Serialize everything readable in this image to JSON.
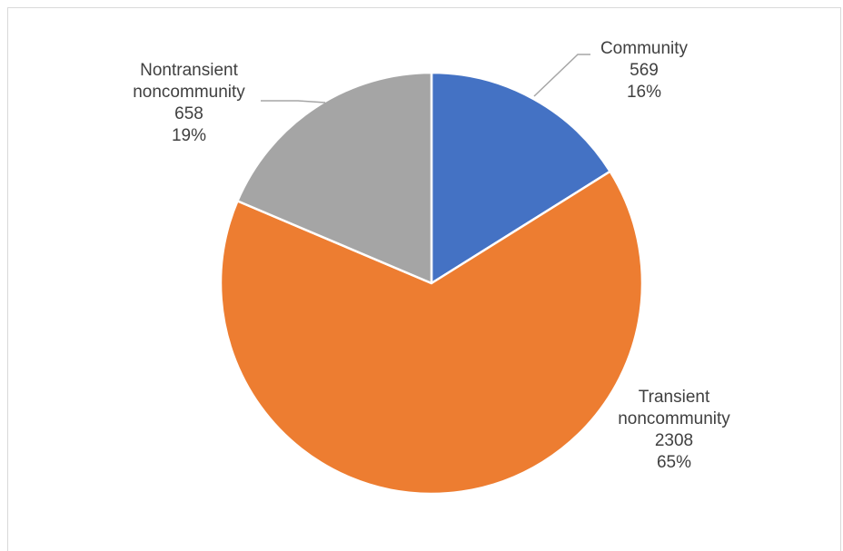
{
  "chart_data": {
    "type": "pie",
    "title": "",
    "slices": [
      {
        "label_lines": [
          "Community"
        ],
        "value_text": "569",
        "percent_text": "16%",
        "value": 569,
        "percent": 16,
        "color": "#4472C4"
      },
      {
        "label_lines": [
          "Transient",
          "noncommunity"
        ],
        "value_text": "2308",
        "percent_text": "65%",
        "value": 2308,
        "percent": 65,
        "color": "#ED7D31"
      },
      {
        "label_lines": [
          "Nontransient",
          "noncommunity"
        ],
        "value_text": "658",
        "percent_text": "19%",
        "value": 658,
        "percent": 19,
        "color": "#A5A5A5"
      }
    ],
    "legend": "none",
    "leader_line_color": "#A6A6A6"
  }
}
